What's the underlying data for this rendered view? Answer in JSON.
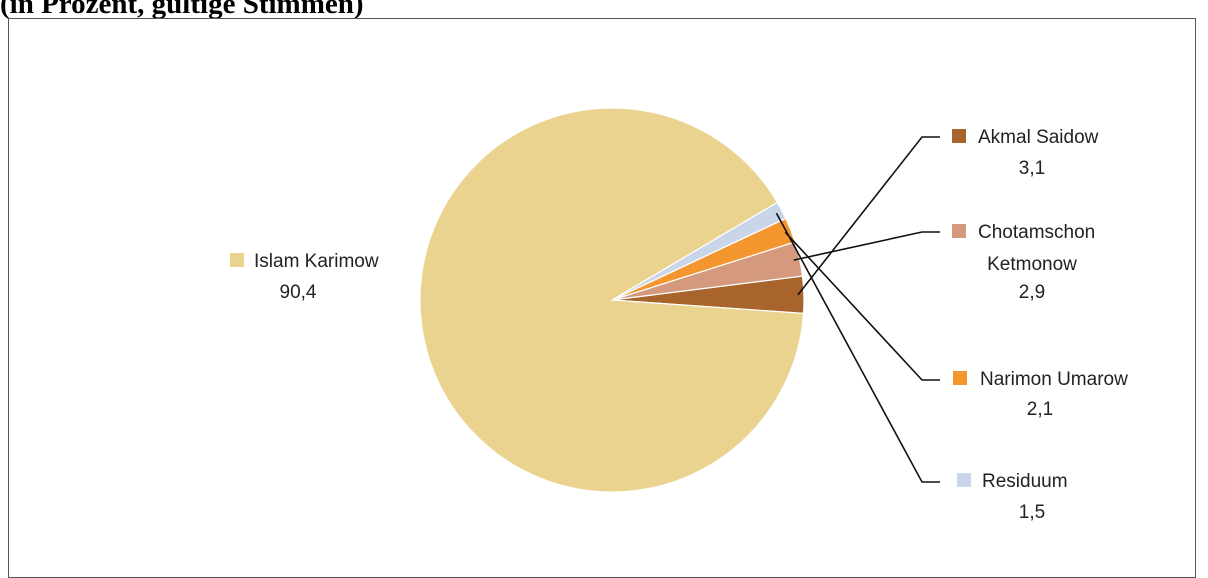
{
  "header": {
    "title": "(in Prozent, gültige Stimmen)"
  },
  "chart_data": {
    "type": "pie",
    "title": "",
    "start_angle_deg": 94,
    "slices": [
      {
        "name": "Akmal Saidow",
        "name_lines": [
          "Akmal Saidow"
        ],
        "value": 3.1,
        "value_label": "3,1",
        "color": "#a9642b"
      },
      {
        "name": "Chotamschon Ketmonow",
        "name_lines": [
          "Chotamschon",
          "Ketmonow"
        ],
        "value": 2.9,
        "value_label": "2,9",
        "color": "#d59a7e"
      },
      {
        "name": "Narimon Umarow",
        "name_lines": [
          "Narimon Umarow"
        ],
        "value": 2.1,
        "value_label": "2,1",
        "color": "#f3962e"
      },
      {
        "name": "Residuum",
        "name_lines": [
          "Residuum"
        ],
        "value": 1.5,
        "value_label": "1,5",
        "color": "#c9d6ea"
      },
      {
        "name": "Islam Karimow",
        "name_lines": [
          "Islam Karimow"
        ],
        "value": 90.4,
        "value_label": "90,4",
        "color": "#ead28f"
      }
    ],
    "legend": "labels beside slices with leader lines"
  }
}
